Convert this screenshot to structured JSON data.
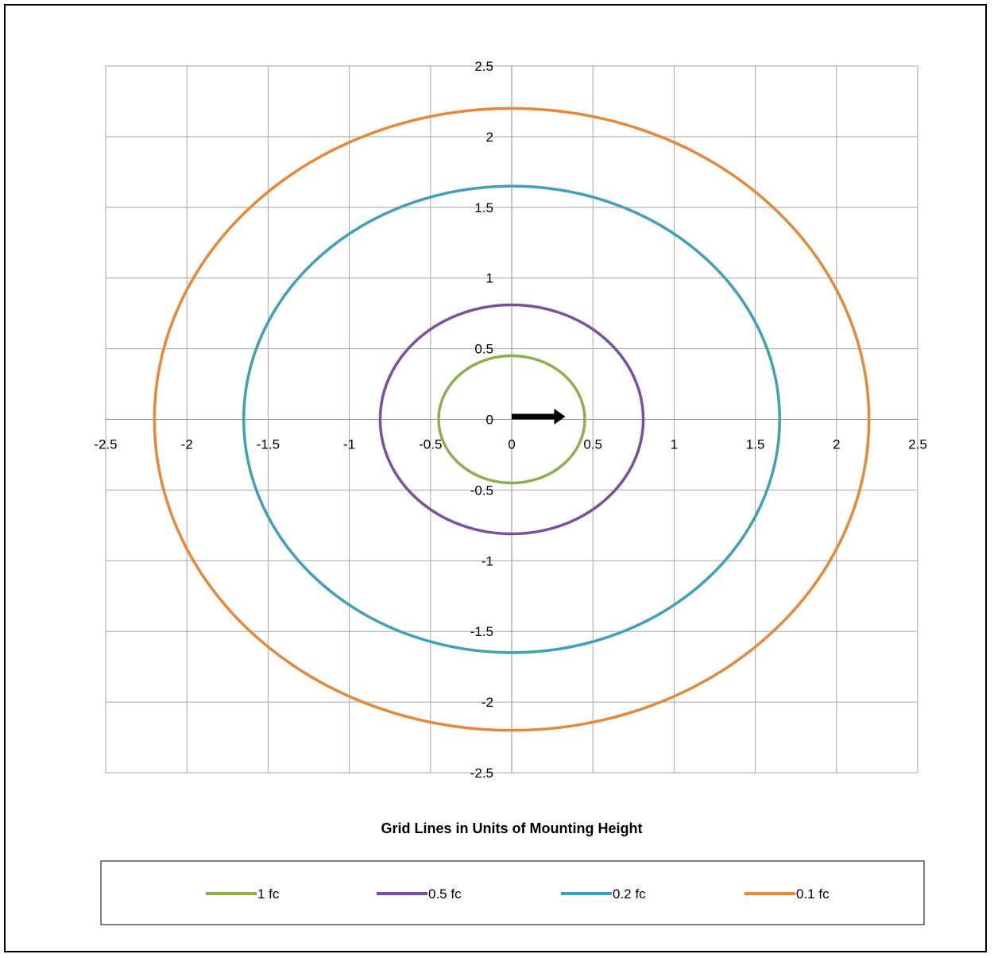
{
  "chart_data": {
    "type": "line",
    "title": "",
    "xlabel": "Grid Lines in Units of Mounting Height",
    "ylabel": "",
    "xlim": [
      -2.5,
      2.5
    ],
    "ylim": [
      -2.5,
      2.5
    ],
    "x_ticks": [
      "-2.5",
      "-2",
      "-1.5",
      "-1",
      "-0.5",
      "0",
      "0.5",
      "1",
      "1.5",
      "2",
      "2.5"
    ],
    "y_ticks": [
      "2.5",
      "2",
      "1.5",
      "1",
      "0.5",
      "0",
      "-0.5",
      "-1",
      "-1.5",
      "-2",
      "-2.5"
    ],
    "grid": true,
    "legend_position": "bottom",
    "series": [
      {
        "name": "1 fc",
        "color": "#8BB04B",
        "radius_x": 0.45,
        "radius_y": 0.45
      },
      {
        "name": "0.5 fc",
        "color": "#7B4F9E",
        "radius_x": 0.81,
        "radius_y": 0.81
      },
      {
        "name": "0.2 fc",
        "color": "#3FA0B8",
        "radius_x": 1.65,
        "radius_y": 1.65
      },
      {
        "name": "0.1 fc",
        "color": "#E5883A",
        "radius_x": 2.2,
        "radius_y": 2.2
      }
    ],
    "arrow": {
      "from": [
        0,
        0.02
      ],
      "to": [
        0.33,
        0.02
      ],
      "color": "#000000"
    }
  }
}
